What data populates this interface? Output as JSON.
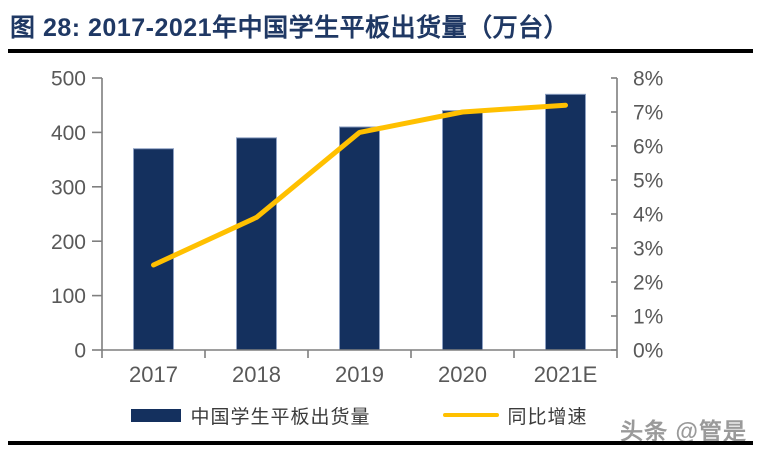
{
  "header": {
    "title": "图 28: 2017-2021年中国学生平板出货量（万台）"
  },
  "chart_data": {
    "type": "combo-bar-line",
    "title": "2017-2021年中国学生平板出货量（万台）",
    "categories": [
      "2017",
      "2018",
      "2019",
      "2020",
      "2021E"
    ],
    "series": [
      {
        "name": "中国学生平板出货量",
        "type": "bar",
        "axis": "left",
        "unit": "万台",
        "values": [
          370,
          390,
          410,
          440,
          470
        ],
        "color": "#14305e"
      },
      {
        "name": "同比增速",
        "type": "line",
        "axis": "right",
        "unit": "%",
        "values": [
          2.5,
          3.9,
          6.4,
          7.0,
          7.2
        ],
        "color": "#ffc000"
      }
    ],
    "left_axis": {
      "min": 0,
      "max": 500,
      "step": 100,
      "tick_labels": [
        "0",
        "100",
        "200",
        "300",
        "400",
        "500"
      ]
    },
    "right_axis": {
      "min": 0,
      "max": 8,
      "step": 1,
      "tick_labels": [
        "0%",
        "1%",
        "2%",
        "3%",
        "4%",
        "5%",
        "6%",
        "7%",
        "8%"
      ]
    },
    "legend_position": "bottom",
    "grid": false
  },
  "legend": {
    "items": [
      {
        "label": "中国学生平板出货量",
        "swatch": "bar",
        "color": "#14305e"
      },
      {
        "label": "同比增速",
        "swatch": "line",
        "color": "#ffc000"
      }
    ]
  },
  "watermark": {
    "text": "头条 @管是"
  },
  "colors": {
    "bar": "#14305e",
    "bar_edge": "#8da0c2",
    "line": "#ffc000",
    "axis": "#7f7f7f",
    "tick_label": "#595959",
    "title": "#1f3864",
    "rule": "#000000",
    "watermark": "#9a9a9a"
  }
}
